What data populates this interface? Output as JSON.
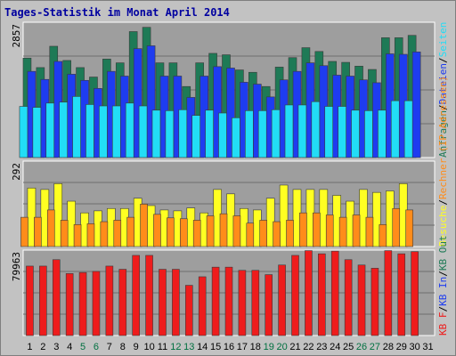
{
  "chart_data": {
    "type": "bar",
    "title": "Tages-Statistik im Monat April 2014",
    "days": [
      "1",
      "2",
      "3",
      "4",
      "5",
      "6",
      "7",
      "8",
      "9",
      "10",
      "11",
      "12",
      "13",
      "14",
      "15",
      "16",
      "17",
      "18",
      "19",
      "20",
      "21",
      "22",
      "23",
      "24",
      "25",
      "26",
      "27",
      "28",
      "29",
      "30",
      "31"
    ],
    "weekend_days": [
      "5",
      "6",
      "12",
      "13",
      "19",
      "20",
      "26",
      "27"
    ],
    "colors": {
      "background": "#C2C2C2",
      "plot": "#9E9E9E",
      "grid": "#6f6f6f",
      "title": "#0000a0",
      "weekday_tick": "#000000",
      "weekend_tick": "#007040",
      "anfragen": "#1E7A56",
      "dateien": "#1E3CF0",
      "seiten": "#22DDF6",
      "besuche": "#FFFF22",
      "rechner": "#FF8C1A",
      "kb_f": "#EE1C1C"
    },
    "panels": [
      {
        "ymax_label": "2857",
        "ymax": 2857,
        "legend": [
          {
            "text": "Anfragen",
            "color": "#1E7A56"
          },
          {
            "text": "/",
            "color": "#000000"
          },
          {
            "text": "Dateien",
            "color": "#1E3CF0"
          },
          {
            "text": "/",
            "color": "#000000"
          },
          {
            "text": "Seiten",
            "color": "#22DDF6"
          }
        ],
        "series": [
          {
            "name": "Anfragen",
            "color": "#1E7A56",
            "values": [
              2100,
              1900,
              2350,
              2050,
              1900,
              1700,
              2080,
              2000,
              2660,
              2750,
              2000,
              2000,
              1500,
              2000,
              2200,
              2170,
              1850,
              1800,
              1500,
              1910,
              2110,
              2320,
              2240,
              2030,
              2010,
              1930,
              1860,
              2530,
              2530,
              2580,
              0
            ]
          },
          {
            "name": "Dateien",
            "color": "#1E3CF0",
            "values": [
              1820,
              1650,
              2030,
              1760,
              1630,
              1460,
              1820,
              1720,
              2300,
              2360,
              1720,
              1720,
              1270,
              1720,
              1920,
              1890,
              1590,
              1550,
              1280,
              1640,
              1820,
              2000,
              1940,
              1740,
              1720,
              1640,
              1580,
              2190,
              2180,
              2230,
              0
            ]
          },
          {
            "name": "Seiten",
            "color": "#22DDF6",
            "values": [
              1080,
              1060,
              1150,
              1170,
              1290,
              1120,
              1090,
              1090,
              1150,
              1090,
              1000,
              990,
              1010,
              890,
              1000,
              940,
              840,
              990,
              990,
              1010,
              1110,
              1110,
              1180,
              1080,
              1080,
              1000,
              990,
              1000,
              1200,
              1200,
              0
            ]
          }
        ]
      },
      {
        "ymax_label": "292",
        "ymax": 292,
        "legend": [
          {
            "text": "Besuche",
            "color": "#FFFF22"
          },
          {
            "text": "/",
            "color": "#000000"
          },
          {
            "text": "Rechner (IP-Adressen)",
            "color": "#FF8C1A"
          }
        ],
        "series": [
          {
            "name": "Besuche",
            "color": "#FFFF22",
            "values": [
              200,
              195,
              215,
              155,
              115,
              122,
              130,
              130,
              165,
              140,
              125,
              122,
              132,
              115,
              195,
              180,
              130,
              125,
              165,
              210,
              195,
              195,
              195,
              175,
              155,
              195,
              185,
              190,
              215,
              0,
              0
            ]
          },
          {
            "name": "Rechner (IP-Adressen)",
            "color": "#FF8C1A",
            "values": [
              100,
              100,
              125,
              90,
              75,
              78,
              85,
              90,
              100,
              145,
              110,
              98,
              95,
              90,
              105,
              112,
              105,
              80,
              90,
              85,
              90,
              115,
              115,
              108,
              100,
              108,
              100,
              75,
              130,
              125,
              0
            ]
          }
        ]
      },
      {
        "ymax_label": "79963",
        "ymax": 79963,
        "legend": [
          {
            "text": "KB F",
            "color": "#EE1C1C"
          },
          {
            "text": "/",
            "color": "#000000"
          },
          {
            "text": "KB In",
            "color": "#1E3CF0"
          },
          {
            "text": "/",
            "color": "#000000"
          },
          {
            "text": "KB Out",
            "color": "#1E7A56"
          }
        ],
        "series": [
          {
            "name": "KB F",
            "color": "#EE1C1C",
            "values": [
              65000,
              65000,
              71000,
              58000,
              59000,
              60000,
              65000,
              62000,
              75000,
              75000,
              62000,
              62000,
              47000,
              55000,
              64000,
              64000,
              61000,
              61000,
              57000,
              66000,
              75000,
              79500,
              76500,
              79000,
              71000,
              66000,
              63000,
              79500,
              76500,
              78500,
              0
            ]
          }
        ]
      }
    ]
  }
}
